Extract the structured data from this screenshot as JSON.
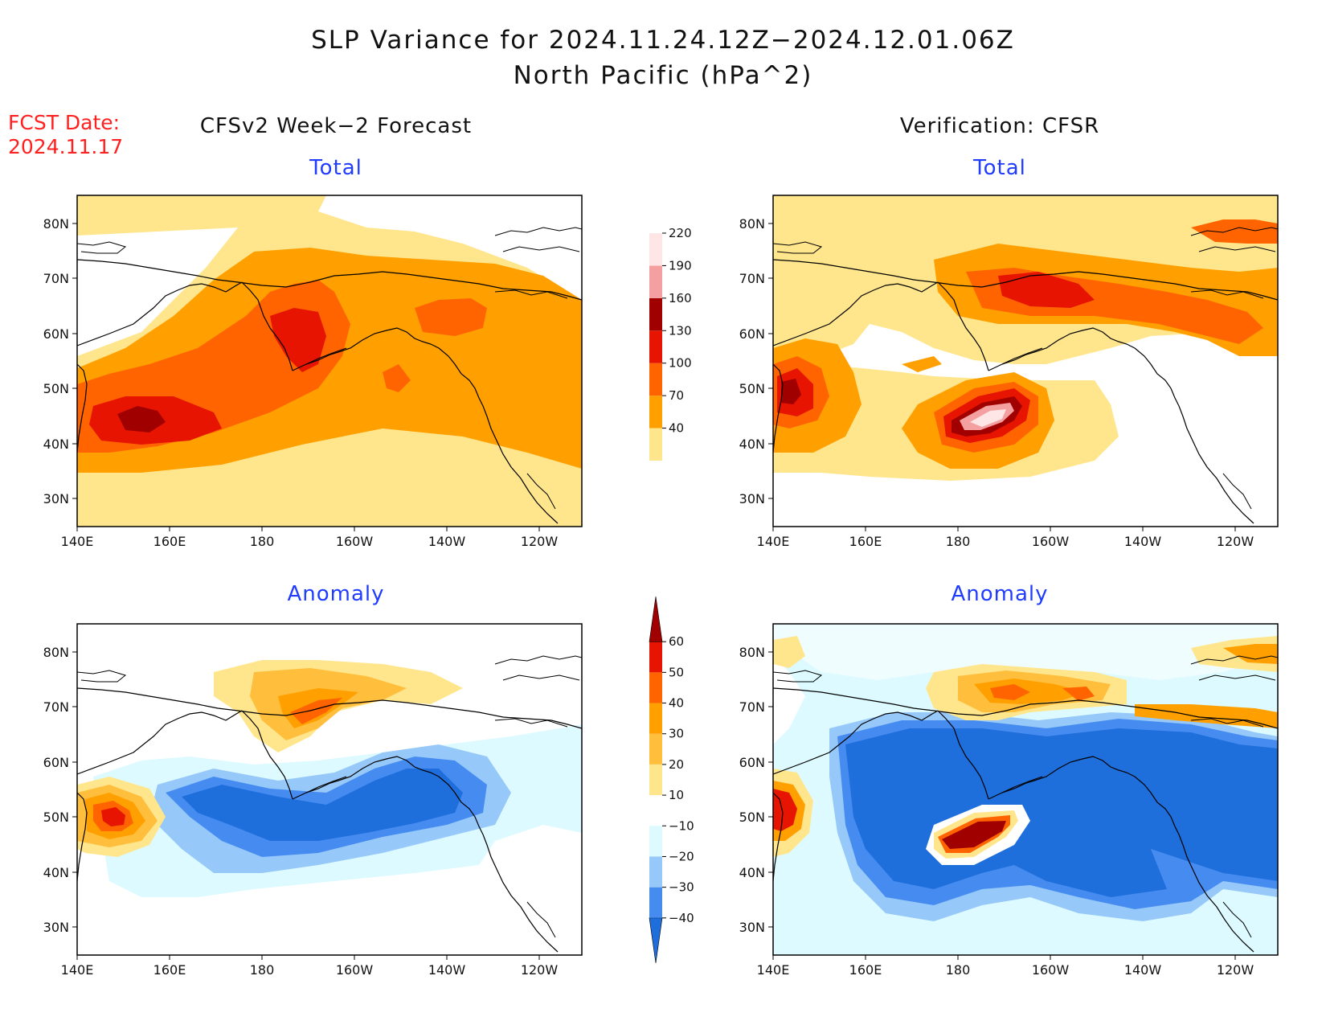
{
  "title_line1": "SLP Variance for 2024.11.24.12Z−2024.12.01.06Z",
  "title_line2": "North Pacific (hPa^2)",
  "fcst_label": "FCST Date:",
  "fcst_date": "2024.11.17",
  "left_column_title": "CFSv2 Week−2 Forecast",
  "right_column_title": "Verification: CFSR",
  "panel_titles": {
    "top_left": "Total",
    "top_right": "Total",
    "bottom_left": "Anomaly",
    "bottom_right": "Anomaly"
  },
  "lat_labels": [
    "80N",
    "70N",
    "60N",
    "50N",
    "40N",
    "30N"
  ],
  "lon_labels": [
    "140E",
    "160E",
    "180",
    "160W",
    "140W",
    "120W"
  ],
  "total_colorbar": {
    "levels": [
      "40",
      "70",
      "100",
      "130",
      "160",
      "190",
      "220"
    ],
    "colors": [
      "#ffe68c",
      "#ffa000",
      "#ff6400",
      "#e61400",
      "#a00000",
      "#f5a0a0",
      "#ffe6e6"
    ]
  },
  "anomaly_colorbar": {
    "levels": [
      "−40",
      "−30",
      "−20",
      "−10",
      "10",
      "20",
      "30",
      "40",
      "50",
      "60"
    ],
    "colors": [
      "#1e6edc",
      "#468cf0",
      "#96c8fa",
      "#dcfaff",
      "#ffffff",
      "#ffe68c",
      "#ffbe3c",
      "#ffa000",
      "#ff6400",
      "#e61400",
      "#a00000"
    ]
  },
  "icons": {
    "map_frame": "map-frame",
    "coastline": "coastline"
  }
}
